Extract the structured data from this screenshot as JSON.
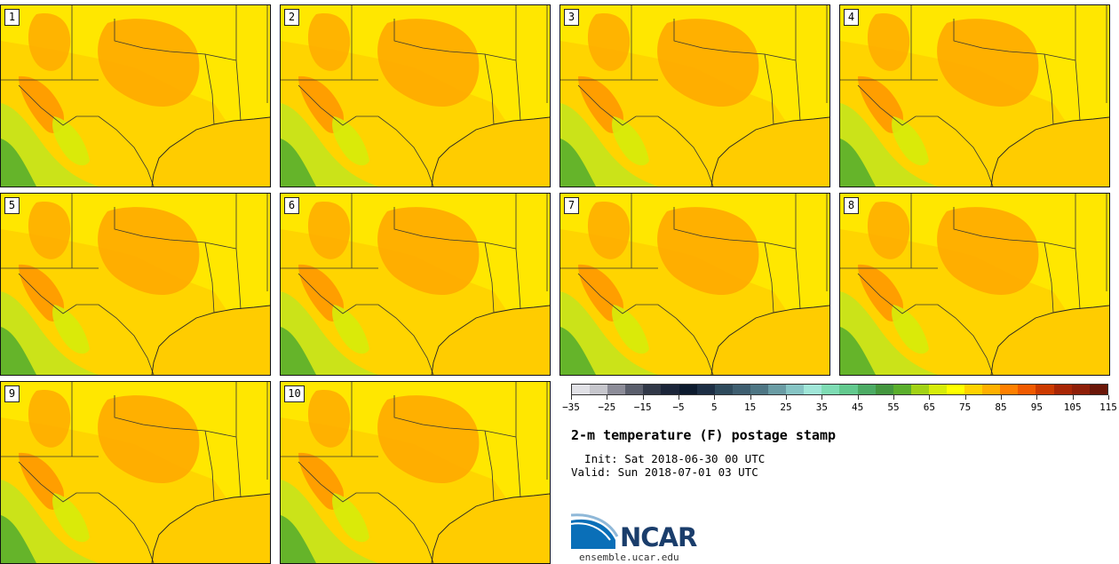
{
  "panels": [
    {
      "label": "1"
    },
    {
      "label": "2"
    },
    {
      "label": "3"
    },
    {
      "label": "4"
    },
    {
      "label": "5"
    },
    {
      "label": "6"
    },
    {
      "label": "7"
    },
    {
      "label": "8"
    },
    {
      "label": "9"
    },
    {
      "label": "10"
    }
  ],
  "colorbar": {
    "colors": [
      "#e1e1e6",
      "#c6c6cc",
      "#8c8c98",
      "#5a5e6c",
      "#313848",
      "#1b2539",
      "#0c1a2e",
      "#1c2e44",
      "#2e4a5c",
      "#3e5e70",
      "#4e7684",
      "#6a9ca4",
      "#86c4c4",
      "#a0e6d8",
      "#7edcb4",
      "#62c98e",
      "#4cab64",
      "#43963e",
      "#5aae2c",
      "#a2d215",
      "#d6ec0a",
      "#ffff00",
      "#ffd200",
      "#ffb000",
      "#ff8000",
      "#f05a00",
      "#cc3a00",
      "#a82605",
      "#8e1e08",
      "#6a1608"
    ],
    "ticks": [
      "−35",
      "−25",
      "−15",
      "−5",
      "5",
      "15",
      "25",
      "35",
      "45",
      "55",
      "65",
      "75",
      "85",
      "95",
      "105",
      "115"
    ]
  },
  "title": "2-m temperature (F) postage stamp",
  "init_line": "  Init: Sat 2018-06-30 00 UTC",
  "valid_line": "Valid: Sun 2018-07-01 03 UTC",
  "logo": {
    "text": "NCAR",
    "site": "ensemble.ucar.edu"
  }
}
